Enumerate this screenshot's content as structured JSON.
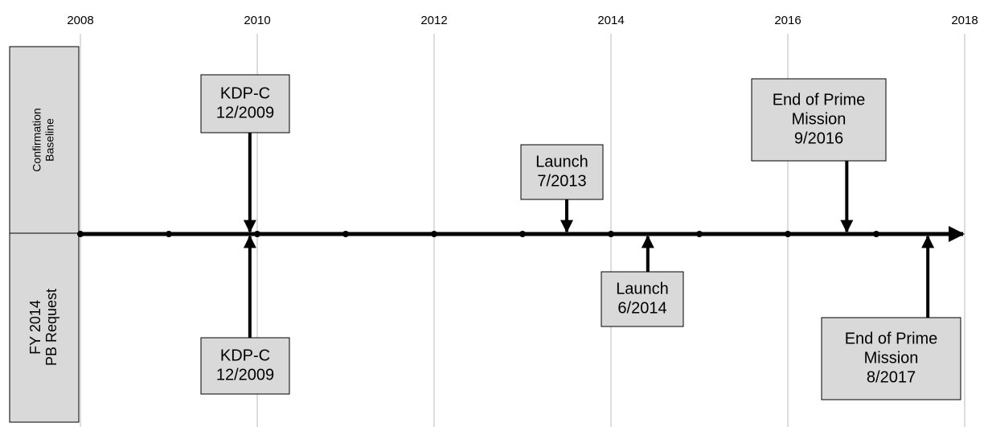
{
  "axis": {
    "years": [
      "2008",
      "2010",
      "2012",
      "2014",
      "2016",
      "2018"
    ]
  },
  "rows": [
    {
      "label": [
        "Confirmation",
        "Baseline"
      ],
      "milestones": [
        {
          "lines": [
            "KDP-C",
            "12/2009"
          ]
        },
        {
          "lines": [
            "Launch",
            "7/2013"
          ]
        },
        {
          "lines": [
            "End of Prime",
            "Mission",
            "9/2016"
          ]
        }
      ]
    },
    {
      "label": [
        "FY 2014",
        "PB Request"
      ],
      "milestones": [
        {
          "lines": [
            "KDP-C",
            "12/2009"
          ]
        },
        {
          "lines": [
            "Launch",
            "6/2014"
          ]
        },
        {
          "lines": [
            "End of Prime",
            "Mission",
            "8/2017"
          ]
        }
      ]
    }
  ]
}
